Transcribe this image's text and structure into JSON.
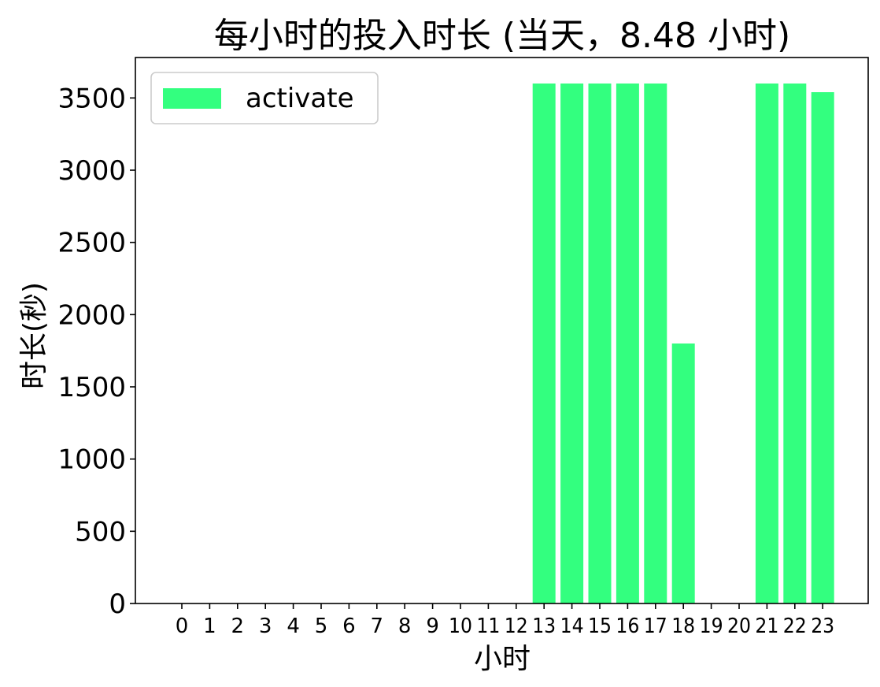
{
  "chart_data": {
    "type": "bar",
    "title": "每小时的投入时长 (当天，8.48 小时)",
    "xlabel": "小时",
    "ylabel": "时长(秒)",
    "categories": [
      "0",
      "1",
      "2",
      "3",
      "4",
      "5",
      "6",
      "7",
      "8",
      "9",
      "10",
      "11",
      "12",
      "13",
      "14",
      "15",
      "16",
      "17",
      "18",
      "19",
      "20",
      "21",
      "22",
      "23"
    ],
    "series": [
      {
        "name": "activate",
        "color": "#33ff7f",
        "values": [
          0,
          0,
          0,
          0,
          0,
          0,
          0,
          0,
          0,
          0,
          0,
          0,
          0,
          3600,
          3600,
          3600,
          3600,
          3600,
          1800,
          0,
          0,
          3600,
          3600,
          3540
        ]
      }
    ],
    "ylim": [
      0,
      3780
    ],
    "yticks": [
      0,
      500,
      1000,
      1500,
      2000,
      2500,
      3000,
      3500
    ],
    "grid": false,
    "legend_position": "top-left"
  }
}
